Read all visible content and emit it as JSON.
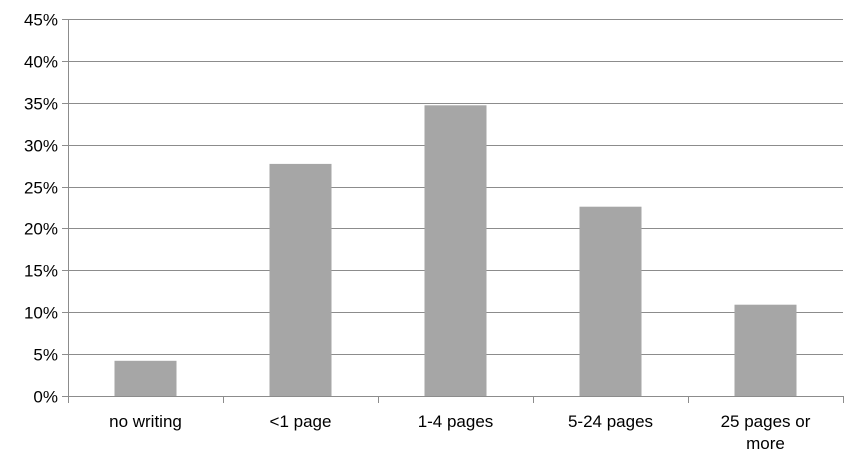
{
  "chart_data": {
    "type": "bar",
    "categories": [
      [
        "no writing"
      ],
      [
        "<1 page"
      ],
      [
        "1-4 pages"
      ],
      [
        "5-24 pages"
      ],
      [
        "25 pages or",
        "more"
      ]
    ],
    "values": [
      4.2,
      27.7,
      34.7,
      22.6,
      10.9
    ],
    "y_tick_labels": [
      "0%",
      "5%",
      "10%",
      "15%",
      "20%",
      "25%",
      "30%",
      "35%",
      "40%",
      "45%"
    ],
    "ylim": [
      0,
      45
    ],
    "y_step": 5,
    "y_unit": "percent",
    "grid": true,
    "legend": "none",
    "colors": {
      "bar": "#a6a6a6",
      "grid": "#8c8c8c",
      "axis": "#8c8c8c",
      "text": "#000000"
    }
  }
}
